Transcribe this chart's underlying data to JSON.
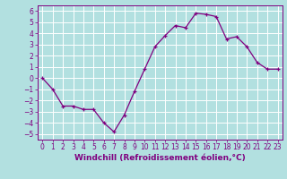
{
  "x": [
    0,
    1,
    2,
    3,
    4,
    5,
    6,
    7,
    8,
    9,
    10,
    11,
    12,
    13,
    14,
    15,
    16,
    17,
    18,
    19,
    20,
    21,
    22,
    23
  ],
  "y": [
    0.0,
    -1.0,
    -2.5,
    -2.5,
    -2.8,
    -2.8,
    -4.0,
    -4.8,
    -3.3,
    -1.2,
    0.8,
    2.8,
    3.8,
    4.7,
    4.5,
    5.8,
    5.7,
    5.5,
    3.5,
    3.7,
    2.8,
    1.4,
    0.8,
    0.8
  ],
  "xlabel": "Windchill (Refroidissement éolien,°C)",
  "xlim": [
    -0.5,
    23.5
  ],
  "ylim": [
    -5.5,
    6.5
  ],
  "yticks": [
    -5,
    -4,
    -3,
    -2,
    -1,
    0,
    1,
    2,
    3,
    4,
    5,
    6
  ],
  "xticks": [
    0,
    1,
    2,
    3,
    4,
    5,
    6,
    7,
    8,
    9,
    10,
    11,
    12,
    13,
    14,
    15,
    16,
    17,
    18,
    19,
    20,
    21,
    22,
    23
  ],
  "line_color": "#800080",
  "marker_color": "#800080",
  "bg_color": "#b2e0e0",
  "grid_color": "#ffffff",
  "font_color": "#800080",
  "tick_fontsize": 5.5,
  "xlabel_fontsize": 6.5
}
